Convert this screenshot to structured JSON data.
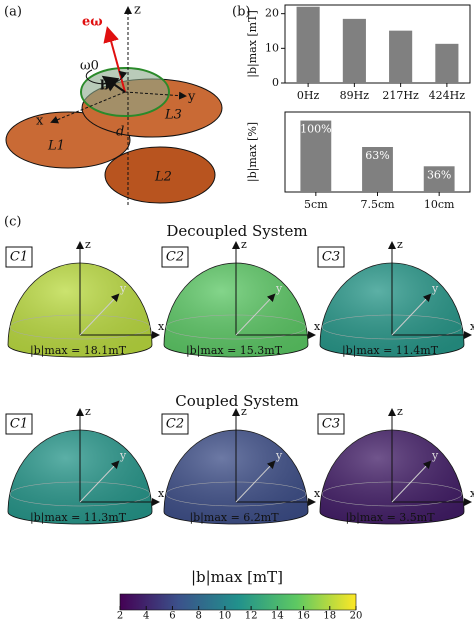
{
  "panel_labels": {
    "a": "(a)",
    "b": "(b)",
    "c": "(c)"
  },
  "diagram": {
    "z": "z",
    "e_omega": "eω",
    "omega": "ω0",
    "b": "b",
    "x": "x",
    "y": "y",
    "L1": "L1",
    "L2": "L2",
    "L3": "L3",
    "d": "d"
  },
  "chart_data": [
    {
      "type": "bar",
      "y_label": "|b|max [mT]",
      "categories": [
        "0Hz",
        "89Hz",
        "217Hz",
        "424Hz"
      ],
      "values": [
        22,
        18.5,
        15.1,
        11.3
      ],
      "color": "#808080",
      "ylim": [
        0,
        22.5
      ],
      "yticks": [
        0,
        10,
        20
      ]
    },
    {
      "type": "bar",
      "y_label": "|b|max [%]",
      "categories": [
        "5cm",
        "7.5cm",
        "10cm"
      ],
      "values": [
        100,
        63,
        36
      ],
      "value_labels": [
        "100%",
        "63%",
        "36%"
      ],
      "color": "#808080",
      "ylim": [
        0,
        112
      ]
    }
  ],
  "field_maps": {
    "axes": {
      "x": "x",
      "y": "y",
      "z": "z"
    },
    "rows": [
      {
        "title": "Decoupled System",
        "items": [
          {
            "name": "C1",
            "value": 18.1,
            "value_label": "|b|max = 18.1mT"
          },
          {
            "name": "C2",
            "value": 15.3,
            "value_label": "|b|max = 15.3mT"
          },
          {
            "name": "C3",
            "value": 11.4,
            "value_label": "|b|max = 11.4mT"
          }
        ]
      },
      {
        "title": "Coupled System",
        "items": [
          {
            "name": "C1",
            "value": 11.3,
            "value_label": "|b|max = 11.3mT"
          },
          {
            "name": "C2",
            "value": 6.2,
            "value_label": "|b|max = 6.2mT"
          },
          {
            "name": "C3",
            "value": 3.5,
            "value_label": "|b|max = 3.5mT"
          }
        ]
      }
    ],
    "colorbar": {
      "label": "|b|max [mT]",
      "lim": [
        2,
        20
      ],
      "ticks": [
        2,
        4,
        6,
        8,
        10,
        12,
        14,
        16,
        18,
        20
      ]
    }
  }
}
